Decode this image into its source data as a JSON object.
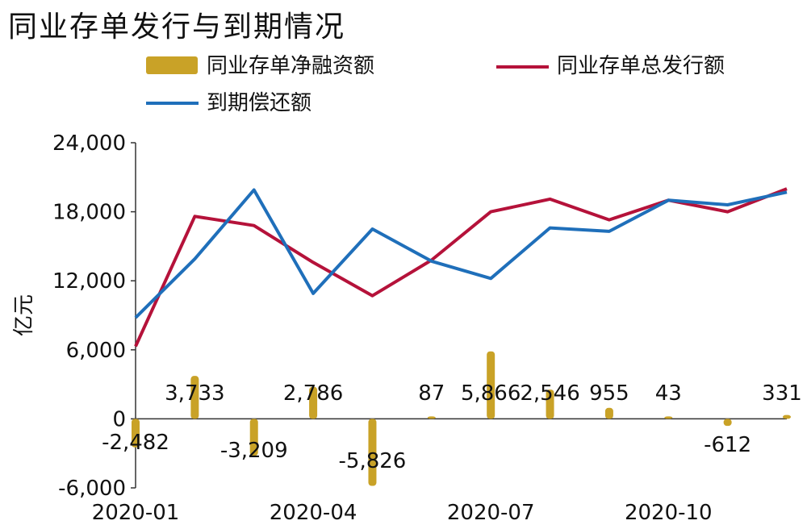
{
  "page": {
    "title": "同业存单发行与到期情况"
  },
  "chart_data": {
    "type": "bar+line",
    "title": "同业存单发行与到期情况",
    "ylabel": "亿元",
    "ylim": [
      -6000,
      24000
    ],
    "yticks": [
      -6000,
      0,
      6000,
      12000,
      18000,
      24000
    ],
    "ytick_labels": [
      "-6,000",
      "0",
      "6,000",
      "12,000",
      "18,000",
      "24,000"
    ],
    "x": [
      "2020-01",
      "2020-02",
      "2020-03",
      "2020-04",
      "2020-05",
      "2020-06",
      "2020-07",
      "2020-08",
      "2020-09",
      "2020-10",
      "2020-11",
      "2020-12"
    ],
    "xtick_labels": [
      "2020-01",
      "2020-04",
      "2020-07",
      "2020-10"
    ],
    "xtick_index": [
      0,
      3,
      6,
      9
    ],
    "series": [
      {
        "name": "同业存单净融资额",
        "kind": "bar",
        "color": "#c9a227",
        "values": [
          -2482,
          3733,
          -3209,
          2786,
          -5826,
          87,
          5866,
          2546,
          955,
          43,
          -612,
          331
        ],
        "labels": [
          "-2,482",
          "3,733",
          "-3,209",
          "2,786",
          "-5,826",
          "87",
          "5,866",
          "2,546",
          "955",
          "43",
          "-612",
          "331"
        ]
      },
      {
        "name": "同业存单总发行额",
        "kind": "line",
        "color": "#b5123a",
        "values": [
          6300,
          17600,
          16800,
          13600,
          10700,
          13800,
          18000,
          19100,
          17300,
          19000,
          18000,
          20000
        ]
      },
      {
        "name": "到期偿还额",
        "kind": "line",
        "color": "#1f6fba",
        "values": [
          8800,
          13900,
          19900,
          10900,
          16500,
          13700,
          12200,
          16600,
          16300,
          19000,
          18600,
          19700
        ]
      }
    ],
    "legend": "top"
  }
}
